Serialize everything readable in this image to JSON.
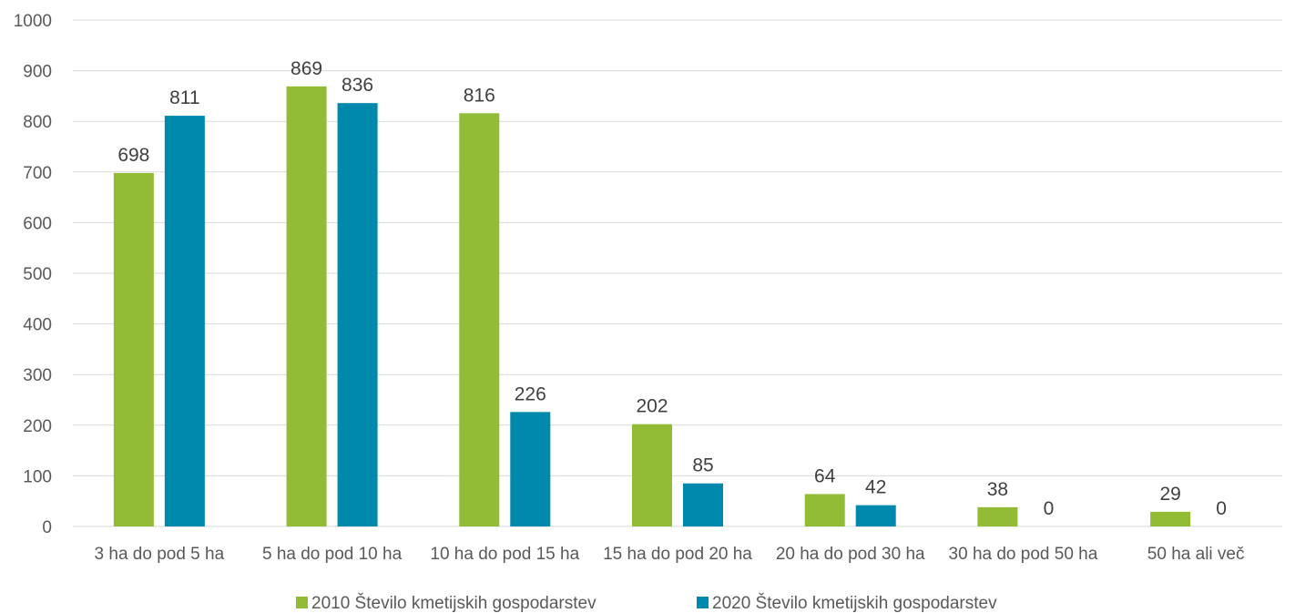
{
  "chart_data": {
    "type": "bar",
    "title": "",
    "xlabel": "",
    "ylabel": "",
    "ylim": [
      0,
      1000
    ],
    "yticks": [
      0,
      100,
      200,
      300,
      400,
      500,
      600,
      700,
      800,
      900,
      1000
    ],
    "grid": true,
    "legend_position": "bottom",
    "categories": [
      "3 ha do pod 5 ha",
      "5 ha do pod 10 ha",
      "10 ha do pod 15 ha",
      "15 ha do pod 20 ha",
      "20 ha do pod 30 ha",
      "30 ha do pod 50 ha",
      "50 ha ali več"
    ],
    "series": [
      {
        "name": "2010 Število kmetijskih gospodarstev",
        "color": "#92bb36",
        "values": [
          698,
          869,
          816,
          202,
          64,
          38,
          29
        ]
      },
      {
        "name": "2020 Število kmetijskih gospodarstev",
        "color": "#0089ad",
        "values": [
          811,
          836,
          226,
          85,
          42,
          0,
          0
        ]
      }
    ]
  }
}
